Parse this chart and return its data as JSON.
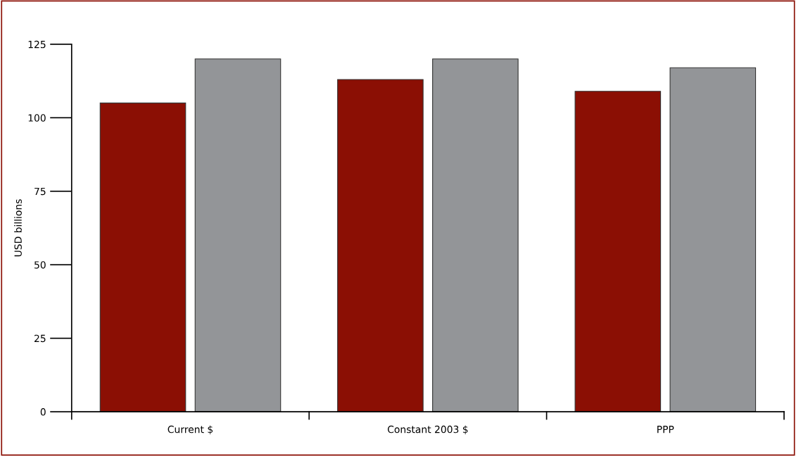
{
  "chart_data": {
    "type": "bar",
    "ylabel": "USD billions",
    "categories": [
      "Current $",
      "Constant 2003 $",
      "PPP"
    ],
    "series": [
      {
        "color": "#8b0f04",
        "values": [
          105,
          113,
          109
        ]
      },
      {
        "color": "#939598",
        "values": [
          120,
          120,
          117
        ]
      }
    ],
    "ylim": [
      0,
      125
    ],
    "yticks": [
      0,
      25,
      50,
      75,
      100,
      125
    ],
    "grid": false,
    "legend": false
  }
}
